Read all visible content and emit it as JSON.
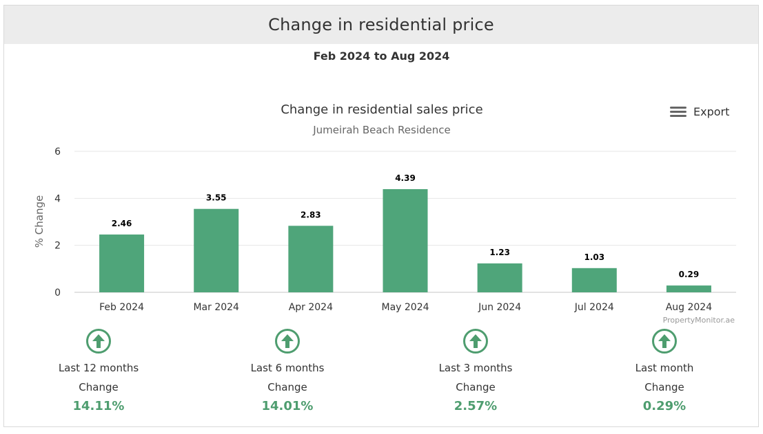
{
  "header": {
    "title": "Change in residential price"
  },
  "period": "Feb 2024 to Aug 2024",
  "export_label": "Export",
  "colors": {
    "bar": "#4fa57a",
    "accent": "#4e9d6f",
    "grid": "#e6e6e6"
  },
  "chart_data": {
    "type": "bar",
    "title": "Change in residential sales price",
    "subtitle": "Jumeirah Beach Residence",
    "ylabel": "% Change",
    "xlabel": "",
    "ylim": [
      0,
      6
    ],
    "yticks": [
      0,
      2,
      4,
      6
    ],
    "categories": [
      "Feb 2024",
      "Mar 2024",
      "Apr 2024",
      "May 2024",
      "Jun 2024",
      "Jul 2024",
      "Aug 2024"
    ],
    "values": [
      2.46,
      3.55,
      2.83,
      4.39,
      1.23,
      1.03,
      0.29
    ],
    "grid": true,
    "credit": "PropertyMonitor.ae"
  },
  "stats": [
    {
      "label": "Last 12 months",
      "sub": "Change",
      "value": "14.11%",
      "icon": "arrow-up-circle-icon"
    },
    {
      "label": "Last 6 months",
      "sub": "Change",
      "value": "14.01%",
      "icon": "arrow-up-circle-icon"
    },
    {
      "label": "Last 3 months",
      "sub": "Change",
      "value": "2.57%",
      "icon": "arrow-up-circle-icon"
    },
    {
      "label": "Last month",
      "sub": "Change",
      "value": "0.29%",
      "icon": "arrow-up-circle-icon"
    }
  ]
}
